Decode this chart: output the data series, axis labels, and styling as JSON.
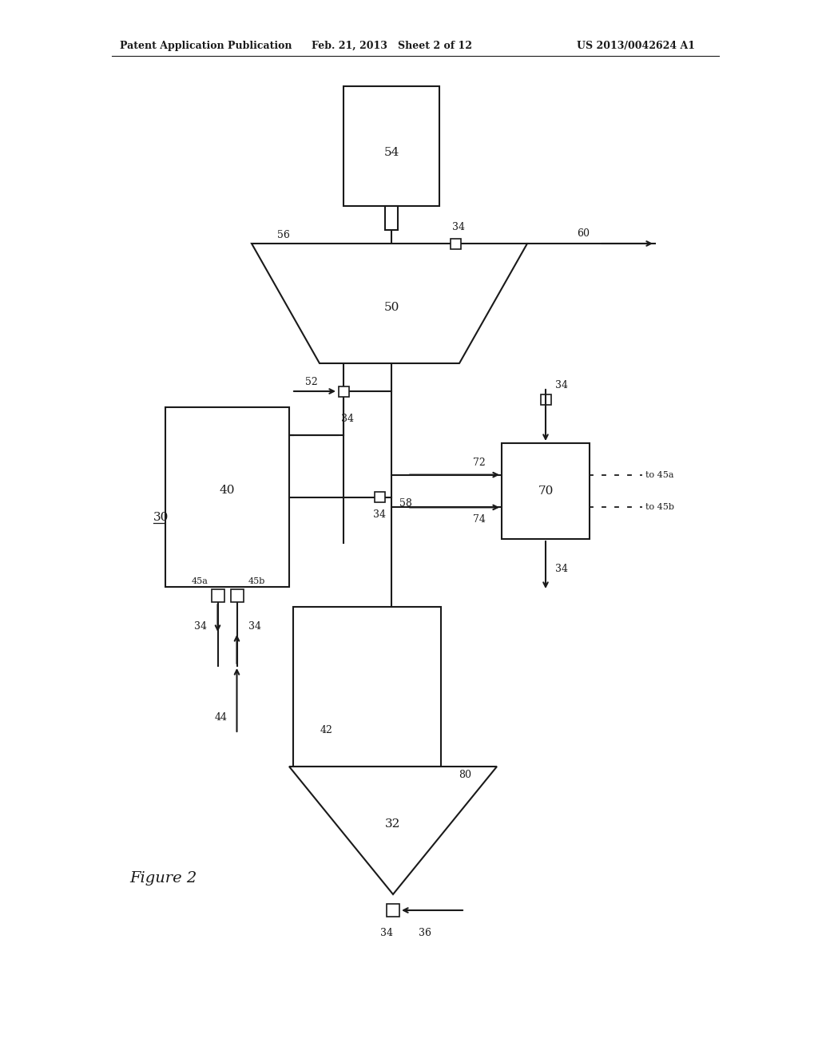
{
  "bg_color": "#ffffff",
  "line_color": "#1a1a1a",
  "text_color": "#1a1a1a",
  "header_left": "Patent Application Publication",
  "header_mid": "Feb. 21, 2013   Sheet 2 of 12",
  "header_right": "US 2013/0042624 A1",
  "label_fontsize": 9,
  "header_fontsize": 9,
  "fig2_fontsize": 13
}
